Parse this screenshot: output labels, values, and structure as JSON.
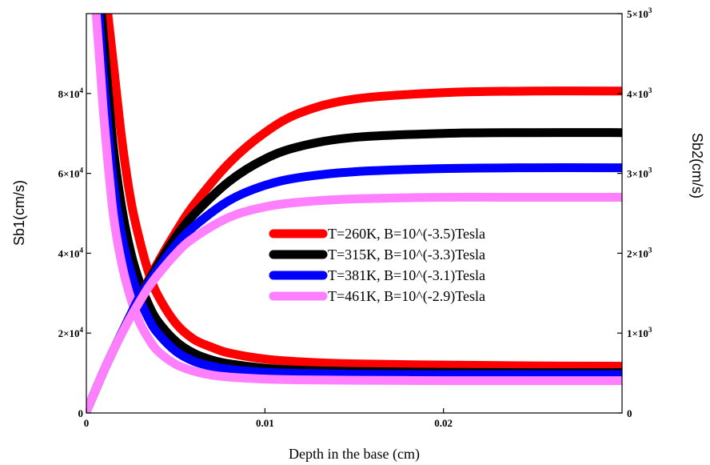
{
  "chart_data": {
    "type": "line",
    "title": "",
    "xlabel": "Depth in the base (cm)",
    "ylabel_left": "Sb1(cm/s)",
    "ylabel_right": "Sb2(cm/s)",
    "xlim": [
      0,
      0.03
    ],
    "ylim_left": [
      0,
      100000
    ],
    "ylim_right": [
      0,
      5000
    ],
    "grid": false,
    "legend_position": "center-right",
    "x_ticks": [
      {
        "value": 0,
        "label": "0"
      },
      {
        "value": 0.01,
        "label": "0.01"
      },
      {
        "value": 0.02,
        "label": "0.02"
      }
    ],
    "y_ticks_left": [
      {
        "value": 0,
        "mant": "0",
        "exp": ""
      },
      {
        "value": 20000,
        "mant": "2×10",
        "exp": "4"
      },
      {
        "value": 40000,
        "mant": "4×10",
        "exp": "4"
      },
      {
        "value": 60000,
        "mant": "6×10",
        "exp": "4"
      },
      {
        "value": 80000,
        "mant": "8×10",
        "exp": "4"
      }
    ],
    "y_ticks_right": [
      {
        "value": 0,
        "mant": "0",
        "exp": ""
      },
      {
        "value": 1000,
        "mant": "1×10",
        "exp": "3"
      },
      {
        "value": 2000,
        "mant": "2×10",
        "exp": "3"
      },
      {
        "value": 3000,
        "mant": "3×10",
        "exp": "3"
      },
      {
        "value": 4000,
        "mant": "4×10",
        "exp": "3"
      },
      {
        "value": 5000,
        "mant": "5×10",
        "exp": "3"
      }
    ],
    "series": [
      {
        "name": "T=260K, B=10^(-3.5)Tesla",
        "color": "#ff0000",
        "sb1": {
          "axis": "left",
          "x": [
            0.0012,
            0.0015,
            0.002,
            0.0025,
            0.003,
            0.0035,
            0.004,
            0.005,
            0.006,
            0.007,
            0.008,
            0.01,
            0.012,
            0.015,
            0.02,
            0.025,
            0.03
          ],
          "y": [
            100000,
            88000,
            68000,
            53000,
            43000,
            35000,
            29500,
            22500,
            18500,
            16500,
            15000,
            13500,
            12800,
            12300,
            12000,
            11800,
            11700
          ]
        },
        "sb2": {
          "axis": "right",
          "x": [
            0,
            0.0005,
            0.001,
            0.0015,
            0.002,
            0.0025,
            0.003,
            0.004,
            0.005,
            0.006,
            0.008,
            0.01,
            0.012,
            0.015,
            0.02,
            0.025,
            0.03
          ],
          "y": [
            20,
            280,
            540,
            780,
            1010,
            1240,
            1460,
            1880,
            2260,
            2600,
            3130,
            3510,
            3760,
            3930,
            4010,
            4030,
            4030
          ]
        }
      },
      {
        "name": "T=315K, B=10^(-3.3)Tesla",
        "color": "#000000",
        "sb1": {
          "axis": "left",
          "x": [
            0.00085,
            0.001,
            0.0015,
            0.002,
            0.0025,
            0.003,
            0.0035,
            0.004,
            0.005,
            0.006,
            0.007,
            0.008,
            0.01,
            0.012,
            0.015,
            0.02,
            0.025,
            0.03
          ],
          "y": [
            100000,
            92000,
            67000,
            51000,
            40000,
            32500,
            27000,
            23000,
            18000,
            15000,
            13300,
            12300,
            11200,
            10700,
            10400,
            10200,
            10100,
            10100
          ]
        },
        "sb2": {
          "axis": "right",
          "x": [
            0,
            0.0005,
            0.001,
            0.0015,
            0.002,
            0.0025,
            0.003,
            0.004,
            0.005,
            0.006,
            0.008,
            0.01,
            0.012,
            0.015,
            0.02,
            0.025,
            0.03
          ],
          "y": [
            20,
            280,
            540,
            780,
            1010,
            1240,
            1460,
            1850,
            2200,
            2480,
            2900,
            3180,
            3340,
            3450,
            3500,
            3510,
            3510
          ]
        }
      },
      {
        "name": "T=381K, B=10^(-3.1)Tesla",
        "color": "#0000ff",
        "sb1": {
          "axis": "left",
          "x": [
            0.0007,
            0.001,
            0.0015,
            0.002,
            0.0025,
            0.003,
            0.0035,
            0.004,
            0.005,
            0.006,
            0.007,
            0.008,
            0.01,
            0.012,
            0.015,
            0.02,
            0.025,
            0.03
          ],
          "y": [
            100000,
            82000,
            58000,
            44000,
            35000,
            28500,
            23500,
            20000,
            15500,
            13000,
            11700,
            10900,
            10200,
            9900,
            9700,
            9600,
            9600,
            9600
          ]
        },
        "sb2": {
          "axis": "right",
          "x": [
            0,
            0.0005,
            0.001,
            0.0015,
            0.002,
            0.0025,
            0.003,
            0.004,
            0.005,
            0.006,
            0.008,
            0.01,
            0.012,
            0.015,
            0.02,
            0.025,
            0.03
          ],
          "y": [
            20,
            280,
            540,
            780,
            1010,
            1240,
            1460,
            1800,
            2100,
            2330,
            2660,
            2850,
            2950,
            3020,
            3060,
            3070,
            3070
          ]
        }
      },
      {
        "name": "T=461K, B=10^(-2.9)Tesla",
        "color": "#ff80ff",
        "sb1": {
          "axis": "left",
          "x": [
            0.00055,
            0.0008,
            0.001,
            0.0015,
            0.002,
            0.0025,
            0.003,
            0.0035,
            0.004,
            0.005,
            0.006,
            0.007,
            0.008,
            0.01,
            0.012,
            0.015,
            0.02,
            0.025,
            0.03
          ],
          "y": [
            100000,
            85000,
            73000,
            50000,
            37000,
            28500,
            22500,
            18500,
            15500,
            12200,
            10500,
            9500,
            9000,
            8500,
            8300,
            8200,
            8100,
            8100,
            8100
          ]
        },
        "sb2": {
          "axis": "right",
          "x": [
            0,
            0.0005,
            0.001,
            0.0015,
            0.002,
            0.0025,
            0.003,
            0.0035,
            0.004,
            0.005,
            0.006,
            0.008,
            0.01,
            0.012,
            0.015,
            0.02,
            0.025,
            0.03
          ],
          "y": [
            20,
            280,
            540,
            780,
            1000,
            1210,
            1400,
            1580,
            1730,
            1990,
            2190,
            2450,
            2580,
            2640,
            2680,
            2700,
            2700,
            2700
          ]
        }
      }
    ]
  }
}
